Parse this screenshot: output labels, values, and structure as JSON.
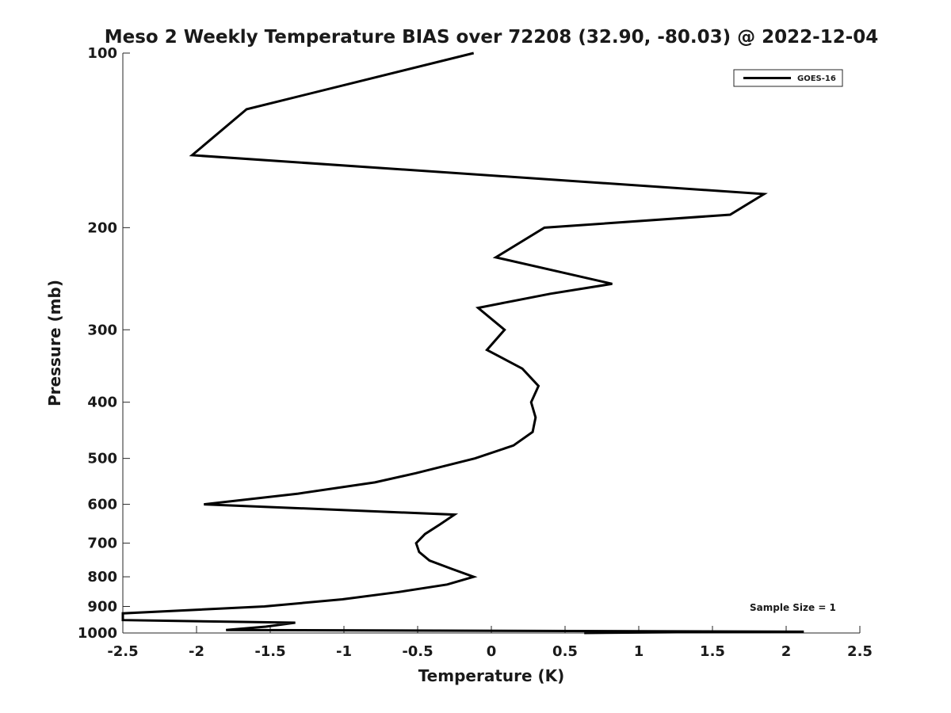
{
  "chart_data": {
    "type": "line",
    "title": "Meso 2 Weekly Temperature BIAS over 72208 (32.90, -80.03) @ 2022-12-04",
    "xlabel": "Temperature (K)",
    "ylabel": "Pressure (mb)",
    "xlim": [
      -2.5,
      2.5
    ],
    "ylim": [
      100,
      1000
    ],
    "y_scale": "log",
    "y_reversed": true,
    "grid": false,
    "legend_position": "top-right",
    "x_ticks": [
      -2.5,
      -2,
      -1.5,
      -1,
      -0.5,
      0,
      0.5,
      1,
      1.5,
      2,
      2.5
    ],
    "x_tick_labels": [
      "-2.5",
      "-2",
      "-1.5",
      "-1",
      "-0.5",
      "0",
      "0.5",
      "1",
      "1.5",
      "2",
      "2.5"
    ],
    "y_ticks": [
      100,
      200,
      300,
      400,
      500,
      600,
      700,
      800,
      900,
      1000
    ],
    "y_tick_labels": [
      "100",
      "200",
      "300",
      "400",
      "500",
      "600",
      "700",
      "800",
      "900",
      "1000"
    ],
    "annotation": "Sample Size = 1",
    "line_color": "#000000",
    "series": [
      {
        "name": "GOES-16",
        "points": [
          [
            -0.12,
            100
          ],
          [
            -1.66,
            125
          ],
          [
            -2.03,
            150
          ],
          [
            1.85,
            175
          ],
          [
            1.62,
            190
          ],
          [
            0.36,
            200
          ],
          [
            0.03,
            225
          ],
          [
            0.82,
            250
          ],
          [
            0.4,
            260
          ],
          [
            -0.09,
            275
          ],
          [
            0.09,
            300
          ],
          [
            -0.03,
            325
          ],
          [
            0.21,
            350
          ],
          [
            0.32,
            375
          ],
          [
            0.27,
            400
          ],
          [
            0.3,
            425
          ],
          [
            0.28,
            450
          ],
          [
            0.15,
            475
          ],
          [
            -0.11,
            500
          ],
          [
            -0.51,
            530
          ],
          [
            -0.79,
            550
          ],
          [
            -1.31,
            575
          ],
          [
            -1.95,
            600
          ],
          [
            -0.25,
            625
          ],
          [
            -0.35,
            650
          ],
          [
            -0.45,
            675
          ],
          [
            -0.51,
            700
          ],
          [
            -0.49,
            725
          ],
          [
            -0.42,
            750
          ],
          [
            -0.27,
            775
          ],
          [
            -0.12,
            800
          ],
          [
            -0.3,
            825
          ],
          [
            -0.63,
            850
          ],
          [
            -1.01,
            875
          ],
          [
            -1.54,
            900
          ],
          [
            -2.5,
            925
          ],
          [
            -2.5,
            950
          ],
          [
            -1.33,
            960
          ],
          [
            -1.53,
            975
          ],
          [
            -1.8,
            988
          ],
          [
            2.12,
            995
          ],
          [
            1.26,
            997
          ],
          [
            0.63,
            1000
          ]
        ]
      }
    ]
  }
}
